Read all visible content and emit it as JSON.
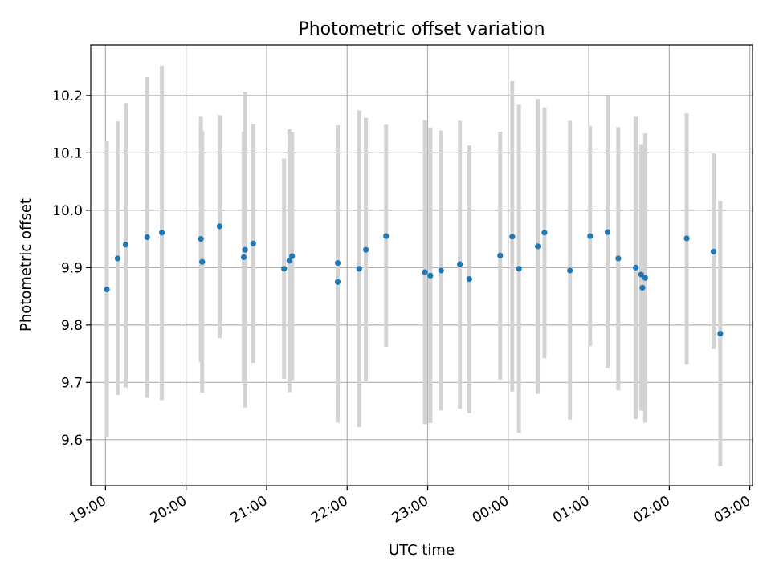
{
  "chart_data": {
    "type": "scatter",
    "title": "Photometric offset variation",
    "xlabel": "UTC time",
    "ylabel": "Photometric offset",
    "xlim": [
      "18:49",
      "03:02"
    ],
    "ylim": [
      9.52,
      10.288
    ],
    "grid": true,
    "x_ticks": [
      "19:00",
      "20:00",
      "21:00",
      "22:00",
      "23:00",
      "00:00",
      "01:00",
      "02:00",
      "03:00"
    ],
    "y_ticks": [
      "9.6",
      "9.7",
      "9.8",
      "9.9",
      "10.0",
      "10.1",
      "10.2"
    ],
    "colors": {
      "point": "#1f77b4",
      "errorbar": "#d3d3d3",
      "grid": "#b0b0b0"
    },
    "points": [
      {
        "x": "19:01",
        "y": 9.862,
        "lo": 9.605,
        "hi": 10.12
      },
      {
        "x": "19:09",
        "y": 9.916,
        "lo": 9.678,
        "hi": 10.155
      },
      {
        "x": "19:15",
        "y": 9.94,
        "lo": 9.691,
        "hi": 10.187
      },
      {
        "x": "19:31",
        "y": 9.953,
        "lo": 9.673,
        "hi": 10.232
      },
      {
        "x": "19:42",
        "y": 9.961,
        "lo": 9.669,
        "hi": 10.252
      },
      {
        "x": "20:11",
        "y": 9.95,
        "lo": 9.735,
        "hi": 10.163
      },
      {
        "x": "20:12",
        "y": 9.91,
        "lo": 9.682,
        "hi": 10.138
      },
      {
        "x": "20:25",
        "y": 9.972,
        "lo": 9.777,
        "hi": 10.166
      },
      {
        "x": "20:43",
        "y": 9.918,
        "lo": 9.698,
        "hi": 10.137
      },
      {
        "x": "20:44",
        "y": 9.931,
        "lo": 9.656,
        "hi": 10.206
      },
      {
        "x": "20:50",
        "y": 9.942,
        "lo": 9.734,
        "hi": 10.15
      },
      {
        "x": "21:13",
        "y": 9.898,
        "lo": 9.706,
        "hi": 10.09
      },
      {
        "x": "21:17",
        "y": 9.912,
        "lo": 9.683,
        "hi": 10.141
      },
      {
        "x": "21:19",
        "y": 9.92,
        "lo": 9.704,
        "hi": 10.136
      },
      {
        "x": "21:53",
        "y": 9.908,
        "lo": 9.668,
        "hi": 10.148
      },
      {
        "x": "21:53",
        "y": 9.875,
        "lo": 9.63,
        "hi": 10.12
      },
      {
        "x": "22:09",
        "y": 9.898,
        "lo": 9.622,
        "hi": 10.174
      },
      {
        "x": "22:14",
        "y": 9.931,
        "lo": 9.702,
        "hi": 10.161
      },
      {
        "x": "22:29",
        "y": 9.955,
        "lo": 9.762,
        "hi": 10.149
      },
      {
        "x": "22:58",
        "y": 9.892,
        "lo": 9.627,
        "hi": 10.157
      },
      {
        "x": "23:02",
        "y": 9.886,
        "lo": 9.629,
        "hi": 10.143
      },
      {
        "x": "23:10",
        "y": 9.895,
        "lo": 9.651,
        "hi": 10.139
      },
      {
        "x": "23:24",
        "y": 9.906,
        "lo": 9.654,
        "hi": 10.156
      },
      {
        "x": "23:31",
        "y": 9.88,
        "lo": 9.646,
        "hi": 10.113
      },
      {
        "x": "23:54",
        "y": 9.921,
        "lo": 9.705,
        "hi": 10.137
      },
      {
        "x": "00:03",
        "y": 9.954,
        "lo": 9.684,
        "hi": 10.225
      },
      {
        "x": "00:08",
        "y": 9.898,
        "lo": 9.612,
        "hi": 10.184
      },
      {
        "x": "00:22",
        "y": 9.937,
        "lo": 9.68,
        "hi": 10.194
      },
      {
        "x": "00:27",
        "y": 9.961,
        "lo": 9.742,
        "hi": 10.179
      },
      {
        "x": "00:46",
        "y": 9.895,
        "lo": 9.635,
        "hi": 10.156
      },
      {
        "x": "01:01",
        "y": 9.955,
        "lo": 9.763,
        "hi": 10.147
      },
      {
        "x": "01:14",
        "y": 9.962,
        "lo": 9.725,
        "hi": 10.199
      },
      {
        "x": "01:22",
        "y": 9.916,
        "lo": 9.686,
        "hi": 10.145
      },
      {
        "x": "01:35",
        "y": 9.9,
        "lo": 9.636,
        "hi": 10.163
      },
      {
        "x": "01:39",
        "y": 9.888,
        "lo": 9.651,
        "hi": 10.115
      },
      {
        "x": "01:40",
        "y": 9.865,
        "lo": 9.651,
        "hi": 10.115
      },
      {
        "x": "01:42",
        "y": 9.882,
        "lo": 9.63,
        "hi": 10.134
      },
      {
        "x": "02:13",
        "y": 9.951,
        "lo": 9.731,
        "hi": 10.169
      },
      {
        "x": "02:33",
        "y": 9.928,
        "lo": 9.758,
        "hi": 10.099
      },
      {
        "x": "02:38",
        "y": 9.785,
        "lo": 9.554,
        "hi": 10.016
      }
    ]
  }
}
